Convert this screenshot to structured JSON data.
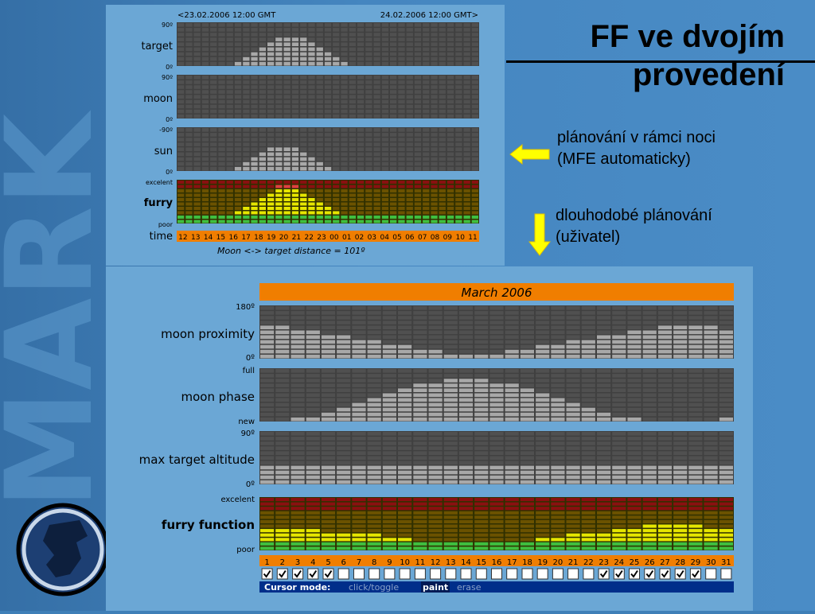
{
  "slide": {
    "title_line1": "FF ve dvojím",
    "title_line2": "provedení",
    "note1_line1": "plánování v rámci noci",
    "note1_line2": "(MFE automaticky)",
    "note2_line1": "dlouhodobé plánování",
    "note2_line2": "(uživatel)",
    "watermark": "MARK",
    "colors": {
      "arrow": "#ffff00",
      "background": "#3f7fb7",
      "panel": "#6ba7d5"
    }
  },
  "nightly": {
    "range_start": "<23.02.2006 12:00 GMT",
    "range_end": "24.02.2006 12:00 GMT>",
    "rows": [
      {
        "label": "target",
        "top": "90º",
        "bottom": "0º",
        "levels": [
          0,
          0,
          0,
          0,
          0,
          0,
          0,
          1,
          2,
          3,
          4,
          5,
          6,
          6,
          6,
          6,
          5,
          4,
          3,
          2,
          1,
          0,
          0,
          0,
          0,
          0,
          0,
          0,
          0,
          0,
          0,
          0,
          0,
          0,
          0,
          0,
          0
        ]
      },
      {
        "label": "moon",
        "top": "90º",
        "bottom": "0º",
        "levels": [
          0,
          0,
          0,
          0,
          0,
          0,
          0,
          0,
          0,
          0,
          0,
          0,
          0,
          0,
          0,
          0,
          0,
          0,
          0,
          0,
          0,
          0,
          0,
          0,
          0,
          0,
          0,
          0,
          0,
          0,
          0,
          0,
          0,
          0,
          0,
          0,
          0
        ]
      },
      {
        "label": "sun",
        "top": "-90º",
        "bottom": "0º",
        "levels": [
          0,
          0,
          0,
          0,
          0,
          0,
          0,
          1,
          2,
          3,
          4,
          5,
          5,
          5,
          5,
          4,
          3,
          2,
          1,
          0,
          0,
          0,
          0,
          0,
          0,
          0,
          0,
          0,
          0,
          0,
          0,
          0,
          0,
          0,
          0,
          0,
          0
        ]
      }
    ],
    "furry": {
      "label": "furry",
      "top": "excelent",
      "bottom": "poor",
      "levels": [
        2,
        2,
        2,
        2,
        2,
        2,
        2,
        3,
        4,
        5,
        6,
        7,
        8,
        8,
        8,
        7,
        6,
        5,
        4,
        3,
        2,
        2,
        2,
        2,
        2,
        2,
        2,
        2,
        2,
        2,
        2,
        2,
        2,
        2,
        2,
        2,
        2
      ]
    },
    "time_label": "time",
    "hours": [
      "12",
      "13",
      "14",
      "15",
      "16",
      "17",
      "18",
      "19",
      "20",
      "21",
      "22",
      "23",
      "00",
      "01",
      "02",
      "03",
      "04",
      "05",
      "06",
      "07",
      "08",
      "09",
      "10",
      "11"
    ],
    "distance_label": "Moon <-> target distance = 101º"
  },
  "monthly": {
    "title": "March 2006",
    "rows": [
      {
        "label": "moon proximity",
        "top": "180º",
        "bottom": "0º",
        "levels": [
          7,
          7,
          6,
          6,
          5,
          5,
          4,
          4,
          3,
          3,
          2,
          2,
          1,
          1,
          1,
          1,
          2,
          2,
          3,
          3,
          4,
          4,
          5,
          5,
          6,
          6,
          7,
          7,
          7,
          7,
          6
        ]
      },
      {
        "label": "moon phase",
        "top": "full",
        "bottom": "new",
        "levels": [
          0,
          0,
          1,
          1,
          2,
          3,
          4,
          5,
          6,
          7,
          8,
          8,
          9,
          9,
          9,
          8,
          8,
          7,
          6,
          5,
          4,
          3,
          2,
          1,
          1,
          0,
          0,
          0,
          0,
          0,
          1
        ]
      },
      {
        "label": "max target altitude",
        "top": "90º",
        "bottom": "0º",
        "levels": [
          4,
          4,
          4,
          4,
          4,
          4,
          4,
          4,
          4,
          4,
          4,
          4,
          4,
          4,
          4,
          4,
          4,
          4,
          4,
          4,
          4,
          4,
          4,
          4,
          4,
          4,
          4,
          4,
          4,
          4,
          4
        ]
      }
    ],
    "furry": {
      "label": "furry function",
      "top": "excelent",
      "bottom": "poor",
      "levels": [
        5,
        5,
        5,
        5,
        4,
        4,
        4,
        4,
        3,
        3,
        2,
        2,
        1,
        1,
        1,
        1,
        2,
        2,
        3,
        3,
        4,
        4,
        4,
        5,
        5,
        6,
        6,
        6,
        6,
        5,
        5
      ]
    },
    "days": [
      "1",
      "2",
      "3",
      "4",
      "5",
      "6",
      "7",
      "8",
      "9",
      "10",
      "11",
      "12",
      "13",
      "14",
      "15",
      "16",
      "17",
      "18",
      "19",
      "20",
      "21",
      "22",
      "23",
      "24",
      "25",
      "26",
      "27",
      "28",
      "29",
      "30",
      "31"
    ],
    "checked": [
      true,
      true,
      true,
      true,
      true,
      false,
      false,
      false,
      false,
      false,
      false,
      false,
      false,
      false,
      false,
      false,
      false,
      false,
      false,
      false,
      false,
      false,
      true,
      true,
      true,
      true,
      true,
      true,
      true,
      false,
      false
    ],
    "cursor_mode": {
      "label": "Cursor mode:",
      "options": [
        "click/toggle",
        "paint",
        "erase"
      ],
      "selected": "paint"
    }
  }
}
